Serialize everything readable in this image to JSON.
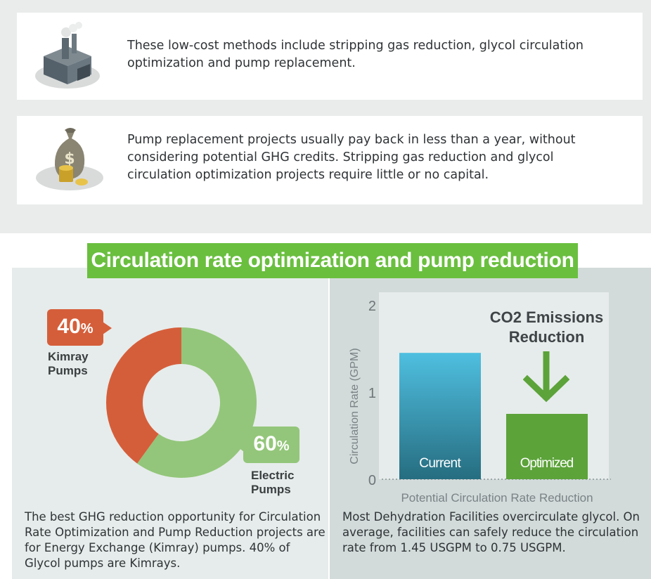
{
  "cards": [
    {
      "text": "These low-cost methods include stripping gas reduction, glycol circulation optimization and pump replacement.",
      "icon": "factory-icon"
    },
    {
      "text": "Pump replacement projects usually pay back in less than a year, without considering potential GHG credits. Stripping gas reduction and glycol circulation optimization projects require little or no capital.",
      "icon": "money-bag-icon"
    }
  ],
  "section_title": "Circulation rate optimization and pump reduction",
  "left_panel": {
    "description": "The best GHG reduction opportunity for Circulation Rate Optimization and Pump Reduction projects are for Energy Exchange (Kimray) pumps. 40% of Glycol pumps are Kimrays."
  },
  "right_panel": {
    "description": "Most Dehydration Facilities overcirculate glycol. On average, facilities can safely reduce the circulation rate from 1.45 USGPM to 0.75 USGPM.",
    "emissions_label": "CO2 Emissions Reduction"
  },
  "colors": {
    "kimray": "#d55e3a",
    "electric": "#93c67a",
    "current_top": "#4fbfe0",
    "current_bottom": "#266d80",
    "optimized": "#5ca33a",
    "arrow": "#5ca33a",
    "title_bg": "#6abf3f"
  },
  "chart_data": [
    {
      "type": "pie",
      "variant": "donut",
      "categories": [
        "Kimray Pumps",
        "Electric Pumps"
      ],
      "values": [
        40,
        60
      ],
      "value_labels": [
        "40",
        "60"
      ],
      "unit": "%",
      "colors": [
        "#d55e3a",
        "#93c67a"
      ]
    },
    {
      "type": "bar",
      "categories": [
        "Current",
        "Optimized"
      ],
      "values": [
        1.45,
        0.75
      ],
      "ylabel": "Circulation Rate (GPM)",
      "xlabel": "Potential Circulation Rate Reduction",
      "ylim": [
        0,
        2
      ],
      "yticks": [
        "0",
        "1",
        "2"
      ],
      "grid": false
    }
  ]
}
